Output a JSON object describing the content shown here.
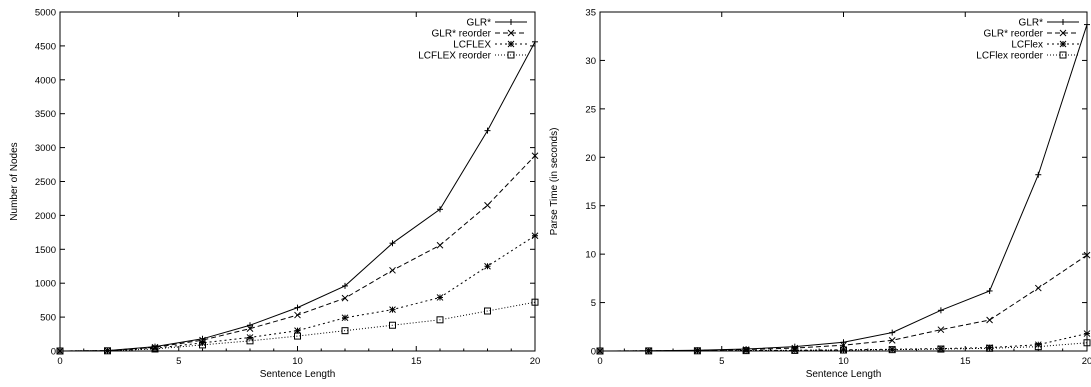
{
  "chart_data": [
    {
      "type": "line",
      "title": "",
      "xlabel": "Sentence Length",
      "ylabel": "Number of Nodes",
      "xlim": [
        0,
        20
      ],
      "ylim": [
        0,
        5000
      ],
      "xticks": [
        0,
        5,
        10,
        15,
        20
      ],
      "yticks": [
        0,
        500,
        1000,
        1500,
        2000,
        2500,
        3000,
        3500,
        4000,
        4500,
        5000
      ],
      "grid": false,
      "legend_position": "top-right",
      "x": [
        0,
        2,
        4,
        6,
        8,
        10,
        12,
        14,
        16,
        18,
        20
      ],
      "series": [
        {
          "name": "GLR*",
          "dash": "solid",
          "marker": "plus",
          "values": [
            0,
            5,
            65,
            180,
            380,
            640,
            960,
            1590,
            2090,
            3250,
            4560
          ]
        },
        {
          "name": "GLR* reorder",
          "dash": "dashed",
          "marker": "cross",
          "values": [
            0,
            5,
            55,
            160,
            330,
            530,
            780,
            1190,
            1560,
            2150,
            2880
          ]
        },
        {
          "name": "LCFLEX",
          "dash": "dotted",
          "marker": "star",
          "values": [
            0,
            4,
            40,
            120,
            200,
            300,
            490,
            610,
            790,
            1250,
            1700
          ]
        },
        {
          "name": "LCFLEX reorder",
          "dash": "finedot",
          "marker": "square",
          "values": [
            0,
            3,
            30,
            90,
            150,
            220,
            300,
            380,
            460,
            590,
            720
          ]
        }
      ]
    },
    {
      "type": "line",
      "title": "",
      "xlabel": "Sentence Length",
      "ylabel": "Parse Time (in seconds)",
      "xlim": [
        0,
        20
      ],
      "ylim": [
        0,
        35
      ],
      "xticks": [
        0,
        5,
        10,
        15,
        20
      ],
      "yticks": [
        0,
        5,
        10,
        15,
        20,
        25,
        30,
        35
      ],
      "grid": false,
      "legend_position": "top-right",
      "x": [
        0,
        2,
        4,
        6,
        8,
        10,
        12,
        14,
        16,
        18,
        20
      ],
      "series": [
        {
          "name": "GLR*",
          "dash": "solid",
          "marker": "plus",
          "values": [
            0,
            0.02,
            0.08,
            0.2,
            0.45,
            0.9,
            1.9,
            4.2,
            6.2,
            18.2,
            33.7
          ]
        },
        {
          "name": "GLR* reorder",
          "dash": "dashed",
          "marker": "cross",
          "values": [
            0,
            0.02,
            0.06,
            0.15,
            0.3,
            0.6,
            1.1,
            2.2,
            3.2,
            6.5,
            9.9
          ]
        },
        {
          "name": "LCFlex",
          "dash": "dotted",
          "marker": "star",
          "values": [
            0,
            0.01,
            0.02,
            0.05,
            0.08,
            0.12,
            0.18,
            0.25,
            0.35,
            0.65,
            1.8
          ]
        },
        {
          "name": "LCFlex reorder",
          "dash": "finedot",
          "marker": "square",
          "values": [
            0,
            0.01,
            0.02,
            0.04,
            0.06,
            0.1,
            0.14,
            0.2,
            0.28,
            0.45,
            0.85
          ]
        }
      ]
    }
  ]
}
